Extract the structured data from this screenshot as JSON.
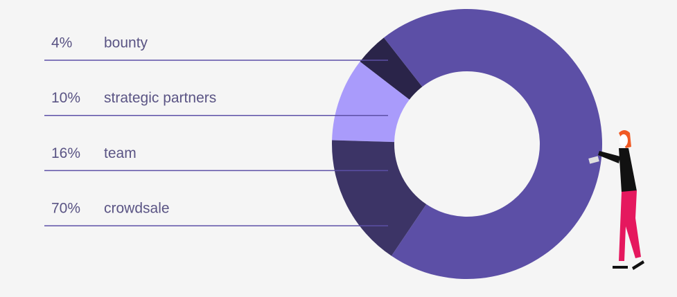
{
  "chart_data": {
    "type": "donut",
    "categories": [
      "bounty",
      "strategic partners",
      "team",
      "crowdsale"
    ],
    "values": [
      4,
      10,
      16,
      70
    ],
    "value_labels": [
      "4%",
      "10%",
      "16%",
      "70%"
    ],
    "colors": [
      "#2a2449",
      "#a99bfb",
      "#3c3466",
      "#5c4fa6"
    ]
  }
}
